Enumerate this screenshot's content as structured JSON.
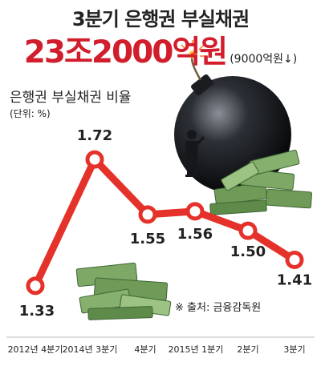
{
  "header": {
    "title": "3분기 은행권 부실채권",
    "subtitle": "23조2000억원",
    "subtitle_note": "(9000억원↓)"
  },
  "chart_label": "은행권 부실채권 비율",
  "unit_label": "(단위: %)",
  "source": "※ 출처: 금융감독원",
  "colors": {
    "line": "#e4322b",
    "accent": "#d11d2c",
    "text": "#222222",
    "money": "#6f9a58"
  },
  "chart_data": {
    "type": "line",
    "categories": [
      "2012년 4분기",
      "2014년 3분기",
      "4분기",
      "2015년 1분기",
      "2분기",
      "3분기"
    ],
    "series": [
      {
        "values": [
          1.33,
          1.72,
          1.55,
          1.56,
          1.5,
          1.41
        ]
      }
    ],
    "data_labels": [
      "1.33",
      "1.72",
      "1.55",
      "1.56",
      "1.50",
      "1.41"
    ],
    "title": "3분기 은행권 부실채권",
    "ylabel": "은행권 부실채권 비율",
    "unit": "(단위: %)",
    "ylim": [
      1.3,
      1.75
    ],
    "grid": false,
    "legend": "none"
  }
}
